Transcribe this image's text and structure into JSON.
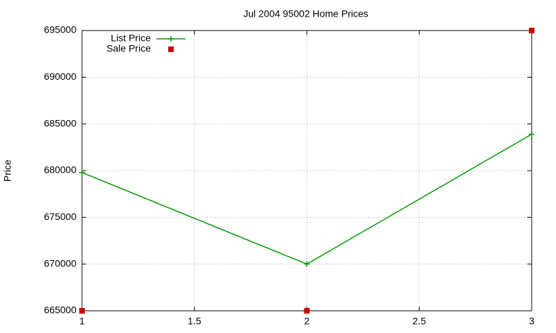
{
  "chart_data": {
    "type": "line",
    "title": "Jul 2004 95002 Home Prices",
    "y_label": "Price",
    "x": [
      1,
      2,
      3
    ],
    "series": [
      {
        "name": "List Price",
        "color": "#009900",
        "values": [
          679800,
          670000,
          683900
        ],
        "lines": true,
        "marker": "plus"
      },
      {
        "name": "Sale Price",
        "color": "#cc0000",
        "values": [
          665000,
          665000,
          695000
        ],
        "lines": false,
        "marker": "square"
      }
    ],
    "xlim": [
      1,
      3
    ],
    "xticks": [
      1,
      1.5,
      2,
      2.5,
      3
    ],
    "ylim": [
      665000,
      695000
    ],
    "yticks": [
      665000,
      670000,
      675000,
      680000,
      685000,
      690000,
      695000
    ],
    "grid": true,
    "legend": "top-left"
  }
}
